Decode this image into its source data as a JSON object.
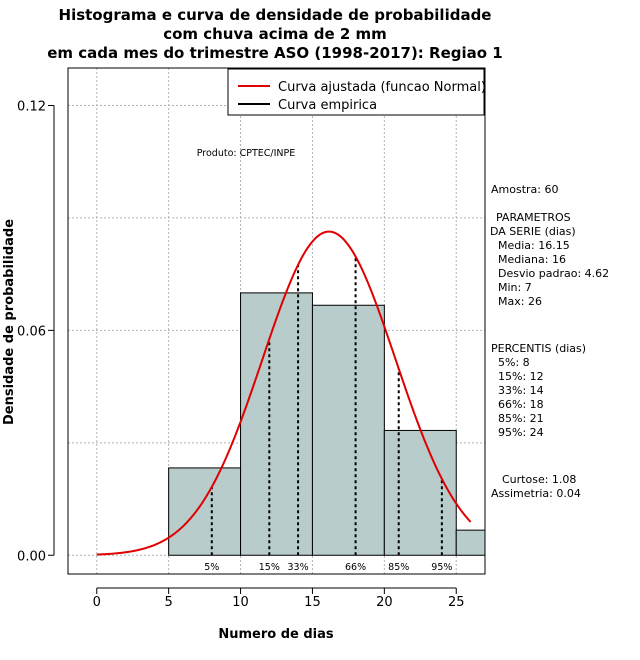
{
  "chart_data": {
    "type": "bar",
    "title_lines": [
      "Histograma e curva de densidade de probabilidade",
      "com chuva acima de 2 mm",
      "em cada mes do trimestre ASO (1998-2017): Regiao 1"
    ],
    "xlabel": "Numero de dias",
    "ylabel": "Densidade de probabilidade",
    "xlim": [
      -2,
      27
    ],
    "ylim": [
      -0.005,
      0.13
    ],
    "xticks": [
      0,
      5,
      10,
      15,
      20,
      25
    ],
    "xtick_labels": [
      "0",
      "5",
      "10",
      "15",
      "20",
      "25"
    ],
    "yticks": [
      0.0,
      0.06,
      0.12
    ],
    "ytick_labels": [
      "0.00",
      "0.06",
      "0.12"
    ],
    "grid": true,
    "histogram": {
      "bins": [
        [
          5,
          10
        ],
        [
          10,
          15
        ],
        [
          15,
          20
        ],
        [
          20,
          25
        ],
        [
          25,
          27
        ]
      ],
      "density": [
        0.0233,
        0.07,
        0.0667,
        0.0333,
        0.0067
      ],
      "fill": "#b7cccb"
    },
    "normal_fit": {
      "mean": 16.15,
      "sd": 4.62,
      "x_from": 0,
      "x_to": 26,
      "color": "#e00000"
    },
    "percentiles": [
      {
        "label": "5%",
        "value": 8
      },
      {
        "label": "15%",
        "value": 12
      },
      {
        "label": "33%",
        "value": 14
      },
      {
        "label": "66%",
        "value": 18
      },
      {
        "label": "85%",
        "value": 21
      },
      {
        "label": "95%",
        "value": 24
      }
    ],
    "legend": [
      {
        "label": "Curva ajustada (funcao Normal)",
        "color": "#e00000"
      },
      {
        "label": "Curva empirica",
        "color": "#000000"
      }
    ],
    "legend_position": "top-right",
    "annotation": "Produto: CPTEC/INPE"
  },
  "side_panel": {
    "sample": "Amostra: 60",
    "params_title_1": "PARAMETROS",
    "params_title_2": "DA SERIE (dias)",
    "params": [
      "Media: 16.15",
      "Mediana: 16",
      "Desvio padrao: 4.62",
      "Min: 7",
      "Max: 26"
    ],
    "percentis_title": "PERCENTIS (dias)",
    "percentis": [
      "5%: 8",
      "15%: 12",
      "33%: 14",
      "66%: 18",
      "85%: 21",
      "95%: 24"
    ],
    "curtose": "Curtose: 1.08",
    "assimetria": "Assimetria: 0.04"
  }
}
